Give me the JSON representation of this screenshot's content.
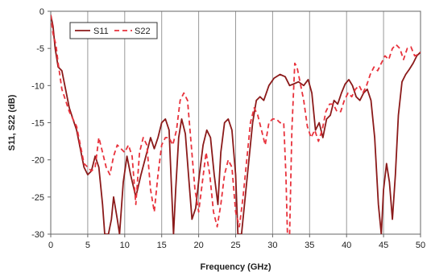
{
  "chart_data": {
    "type": "line",
    "title": "",
    "xlabel": "Frequency (GHz)",
    "ylabel": "S11, S22 (dB)",
    "xlim": [
      0,
      50
    ],
    "ylim": [
      -30,
      0
    ],
    "x_ticks": [
      "0",
      "5",
      "10",
      "15",
      "20",
      "25",
      "30",
      "35",
      "40",
      "45",
      "50"
    ],
    "y_ticks": [
      "0",
      "-5",
      "-10",
      "-15",
      "-20",
      "-25",
      "-30"
    ],
    "grid": "vertical",
    "legend_position": "top-left",
    "series": [
      {
        "name": "S11",
        "color": "#8b1a1a",
        "style": "solid",
        "points": [
          [
            0.0,
            -0.5
          ],
          [
            0.3,
            -2
          ],
          [
            0.6,
            -5
          ],
          [
            1.0,
            -7.5
          ],
          [
            1.5,
            -8
          ],
          [
            2.0,
            -10.5
          ],
          [
            2.5,
            -13
          ],
          [
            3.0,
            -14.5
          ],
          [
            3.5,
            -16
          ],
          [
            4.0,
            -18.5
          ],
          [
            4.5,
            -21
          ],
          [
            5.0,
            -22
          ],
          [
            5.5,
            -21.5
          ],
          [
            6.0,
            -19.5
          ],
          [
            6.5,
            -21
          ],
          [
            7.0,
            -26
          ],
          [
            7.3,
            -30
          ],
          [
            7.8,
            -30
          ],
          [
            8.2,
            -28
          ],
          [
            8.5,
            -25
          ],
          [
            9.0,
            -28
          ],
          [
            9.3,
            -30
          ],
          [
            9.8,
            -23
          ],
          [
            10.3,
            -19.5
          ],
          [
            10.8,
            -22
          ],
          [
            11.5,
            -25
          ],
          [
            12.2,
            -22
          ],
          [
            13.0,
            -19
          ],
          [
            13.5,
            -17
          ],
          [
            14.0,
            -18.5
          ],
          [
            14.5,
            -17
          ],
          [
            15.0,
            -15
          ],
          [
            15.5,
            -14.5
          ],
          [
            16.0,
            -16
          ],
          [
            16.3,
            -23
          ],
          [
            16.6,
            -30
          ],
          [
            16.9,
            -24
          ],
          [
            17.3,
            -17
          ],
          [
            17.7,
            -14.5
          ],
          [
            18.2,
            -16.5
          ],
          [
            18.7,
            -23
          ],
          [
            19.1,
            -28
          ],
          [
            19.6,
            -26.5
          ],
          [
            20.1,
            -22
          ],
          [
            20.6,
            -18
          ],
          [
            21.1,
            -16
          ],
          [
            21.6,
            -17
          ],
          [
            22.1,
            -22
          ],
          [
            22.6,
            -26
          ],
          [
            23.0,
            -19
          ],
          [
            23.5,
            -15
          ],
          [
            24.0,
            -14.5
          ],
          [
            24.5,
            -16
          ],
          [
            25.0,
            -22
          ],
          [
            25.3,
            -30
          ],
          [
            25.8,
            -30
          ],
          [
            26.3,
            -25
          ],
          [
            26.8,
            -20
          ],
          [
            27.3,
            -15
          ],
          [
            27.8,
            -12
          ],
          [
            28.3,
            -11.5
          ],
          [
            28.8,
            -12
          ],
          [
            29.5,
            -10
          ],
          [
            30.2,
            -9
          ],
          [
            31.0,
            -8.5
          ],
          [
            31.7,
            -8.8
          ],
          [
            32.3,
            -10
          ],
          [
            32.8,
            -9.8
          ],
          [
            33.5,
            -9.5
          ],
          [
            34.2,
            -10
          ],
          [
            34.8,
            -9.2
          ],
          [
            35.3,
            -11
          ],
          [
            35.8,
            -16
          ],
          [
            36.3,
            -15
          ],
          [
            36.8,
            -17
          ],
          [
            37.3,
            -14.5
          ],
          [
            37.8,
            -14
          ],
          [
            38.3,
            -12
          ],
          [
            38.8,
            -12.5
          ],
          [
            39.3,
            -11
          ],
          [
            39.8,
            -9.8
          ],
          [
            40.3,
            -9.2
          ],
          [
            40.8,
            -10
          ],
          [
            41.3,
            -11.5
          ],
          [
            41.8,
            -12
          ],
          [
            42.3,
            -11
          ],
          [
            42.8,
            -10.5
          ],
          [
            43.3,
            -12
          ],
          [
            43.8,
            -17
          ],
          [
            44.3,
            -26
          ],
          [
            44.7,
            -30
          ],
          [
            45.0,
            -24
          ],
          [
            45.4,
            -20.5
          ],
          [
            45.8,
            -23
          ],
          [
            46.2,
            -28
          ],
          [
            46.6,
            -22
          ],
          [
            47.0,
            -14
          ],
          [
            47.5,
            -9.5
          ],
          [
            48.0,
            -8.5
          ],
          [
            48.5,
            -7.8
          ],
          [
            49.0,
            -7
          ],
          [
            49.5,
            -6
          ],
          [
            50.0,
            -5.5
          ]
        ]
      },
      {
        "name": "S22",
        "color": "#e8323c",
        "style": "dashed",
        "points": [
          [
            0.0,
            -0.5
          ],
          [
            0.3,
            -3
          ],
          [
            0.7,
            -4.5
          ],
          [
            1.0,
            -7
          ],
          [
            1.5,
            -10.5
          ],
          [
            2.0,
            -12
          ],
          [
            2.5,
            -13.5
          ],
          [
            3.0,
            -14.5
          ],
          [
            3.5,
            -15.5
          ],
          [
            4.0,
            -18
          ],
          [
            4.5,
            -20.5
          ],
          [
            5.0,
            -21
          ],
          [
            5.5,
            -21.5
          ],
          [
            6.0,
            -21
          ],
          [
            6.5,
            -17
          ],
          [
            7.0,
            -19
          ],
          [
            7.5,
            -21
          ],
          [
            8.0,
            -22
          ],
          [
            8.5,
            -19.5
          ],
          [
            9.0,
            -18
          ],
          [
            9.5,
            -18.5
          ],
          [
            10.0,
            -19
          ],
          [
            10.5,
            -18
          ],
          [
            11.0,
            -19.5
          ],
          [
            11.5,
            -26
          ],
          [
            12.0,
            -19
          ],
          [
            12.5,
            -17
          ],
          [
            13.0,
            -18
          ],
          [
            13.5,
            -24
          ],
          [
            14.0,
            -27
          ],
          [
            14.5,
            -22
          ],
          [
            15.0,
            -18
          ],
          [
            15.5,
            -17
          ],
          [
            16.0,
            -17
          ],
          [
            16.5,
            -18
          ],
          [
            17.0,
            -16
          ],
          [
            17.5,
            -12
          ],
          [
            18.0,
            -11
          ],
          [
            18.5,
            -12
          ],
          [
            19.0,
            -18
          ],
          [
            19.5,
            -24
          ],
          [
            20.0,
            -27
          ],
          [
            20.5,
            -23
          ],
          [
            21.0,
            -19
          ],
          [
            21.5,
            -22
          ],
          [
            22.0,
            -27
          ],
          [
            22.5,
            -29
          ],
          [
            23.0,
            -26
          ],
          [
            23.5,
            -22
          ],
          [
            24.0,
            -20
          ],
          [
            24.5,
            -21
          ],
          [
            25.0,
            -27
          ],
          [
            25.5,
            -29
          ],
          [
            26.0,
            -25
          ],
          [
            26.5,
            -20
          ],
          [
            27.0,
            -15
          ],
          [
            27.5,
            -13
          ],
          [
            28.0,
            -14
          ],
          [
            28.5,
            -16
          ],
          [
            29.0,
            -18
          ],
          [
            29.5,
            -15
          ],
          [
            30.0,
            -14.5
          ],
          [
            30.5,
            -14.5
          ],
          [
            31.0,
            -15
          ],
          [
            31.5,
            -15
          ],
          [
            31.8,
            -22
          ],
          [
            32.0,
            -30
          ],
          [
            32.3,
            -30
          ],
          [
            32.6,
            -16
          ],
          [
            33.0,
            -7
          ],
          [
            33.3,
            -7.5
          ],
          [
            33.7,
            -9.5
          ],
          [
            34.2,
            -12
          ],
          [
            34.7,
            -15.5
          ],
          [
            35.2,
            -17
          ],
          [
            35.7,
            -16
          ],
          [
            36.2,
            -17.5
          ],
          [
            36.7,
            -16
          ],
          [
            37.2,
            -13.5
          ],
          [
            37.7,
            -12.5
          ],
          [
            38.2,
            -12.5
          ],
          [
            38.7,
            -13.5
          ],
          [
            39.2,
            -13.5
          ],
          [
            39.7,
            -12
          ],
          [
            40.2,
            -11
          ],
          [
            40.7,
            -11.5
          ],
          [
            41.2,
            -10.5
          ],
          [
            41.7,
            -10
          ],
          [
            42.2,
            -11
          ],
          [
            42.7,
            -10
          ],
          [
            43.2,
            -8.5
          ],
          [
            43.7,
            -7.5
          ],
          [
            44.2,
            -8
          ],
          [
            44.7,
            -7
          ],
          [
            45.2,
            -6
          ],
          [
            45.7,
            -6.5
          ],
          [
            46.2,
            -5
          ],
          [
            46.7,
            -4.5
          ],
          [
            47.2,
            -5
          ],
          [
            47.7,
            -6.5
          ],
          [
            48.2,
            -5
          ],
          [
            48.7,
            -4.8
          ],
          [
            49.2,
            -6
          ],
          [
            49.7,
            -5.8
          ],
          [
            50.0,
            -5.5
          ]
        ]
      }
    ]
  }
}
